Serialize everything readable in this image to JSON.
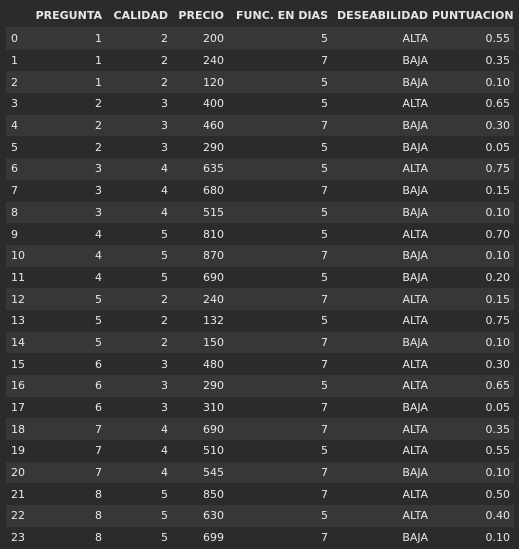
{
  "columns": {
    "index": "",
    "pregunta": "PREGUNTA",
    "calidad": "CALIDAD",
    "precio": "PRECIO",
    "func": "FUNC. EN DIAS",
    "deseabilidad": "DESEABILIDAD",
    "puntuacion": "PUNTUACION"
  },
  "rows": [
    {
      "idx": "0",
      "pregunta": "1",
      "calidad": "2",
      "precio": "200",
      "func": "5",
      "deseabilidad": "ALTA",
      "puntuacion": "0.55"
    },
    {
      "idx": "1",
      "pregunta": "1",
      "calidad": "2",
      "precio": "240",
      "func": "7",
      "deseabilidad": "BAJA",
      "puntuacion": "0.35"
    },
    {
      "idx": "2",
      "pregunta": "1",
      "calidad": "2",
      "precio": "120",
      "func": "5",
      "deseabilidad": "BAJA",
      "puntuacion": "0.10"
    },
    {
      "idx": "3",
      "pregunta": "2",
      "calidad": "3",
      "precio": "400",
      "func": "5",
      "deseabilidad": "ALTA",
      "puntuacion": "0.65"
    },
    {
      "idx": "4",
      "pregunta": "2",
      "calidad": "3",
      "precio": "460",
      "func": "7",
      "deseabilidad": "BAJA",
      "puntuacion": "0.30"
    },
    {
      "idx": "5",
      "pregunta": "2",
      "calidad": "3",
      "precio": "290",
      "func": "5",
      "deseabilidad": "BAJA",
      "puntuacion": "0.05"
    },
    {
      "idx": "6",
      "pregunta": "3",
      "calidad": "4",
      "precio": "635",
      "func": "5",
      "deseabilidad": "ALTA",
      "puntuacion": "0.75"
    },
    {
      "idx": "7",
      "pregunta": "3",
      "calidad": "4",
      "precio": "680",
      "func": "7",
      "deseabilidad": "BAJA",
      "puntuacion": "0.15"
    },
    {
      "idx": "8",
      "pregunta": "3",
      "calidad": "4",
      "precio": "515",
      "func": "5",
      "deseabilidad": "BAJA",
      "puntuacion": "0.10"
    },
    {
      "idx": "9",
      "pregunta": "4",
      "calidad": "5",
      "precio": "810",
      "func": "5",
      "deseabilidad": "ALTA",
      "puntuacion": "0.70"
    },
    {
      "idx": "10",
      "pregunta": "4",
      "calidad": "5",
      "precio": "870",
      "func": "7",
      "deseabilidad": "BAJA",
      "puntuacion": "0.10"
    },
    {
      "idx": "11",
      "pregunta": "4",
      "calidad": "5",
      "precio": "690",
      "func": "5",
      "deseabilidad": "BAJA",
      "puntuacion": "0.20"
    },
    {
      "idx": "12",
      "pregunta": "5",
      "calidad": "2",
      "precio": "240",
      "func": "7",
      "deseabilidad": "ALTA",
      "puntuacion": "0.15"
    },
    {
      "idx": "13",
      "pregunta": "5",
      "calidad": "2",
      "precio": "132",
      "func": "5",
      "deseabilidad": "ALTA",
      "puntuacion": "0.75"
    },
    {
      "idx": "14",
      "pregunta": "5",
      "calidad": "2",
      "precio": "150",
      "func": "7",
      "deseabilidad": "BAJA",
      "puntuacion": "0.10"
    },
    {
      "idx": "15",
      "pregunta": "6",
      "calidad": "3",
      "precio": "480",
      "func": "7",
      "deseabilidad": "ALTA",
      "puntuacion": "0.30"
    },
    {
      "idx": "16",
      "pregunta": "6",
      "calidad": "3",
      "precio": "290",
      "func": "5",
      "deseabilidad": "ALTA",
      "puntuacion": "0.65"
    },
    {
      "idx": "17",
      "pregunta": "6",
      "calidad": "3",
      "precio": "310",
      "func": "7",
      "deseabilidad": "BAJA",
      "puntuacion": "0.05"
    },
    {
      "idx": "18",
      "pregunta": "7",
      "calidad": "4",
      "precio": "690",
      "func": "7",
      "deseabilidad": "ALTA",
      "puntuacion": "0.35"
    },
    {
      "idx": "19",
      "pregunta": "7",
      "calidad": "4",
      "precio": "510",
      "func": "5",
      "deseabilidad": "ALTA",
      "puntuacion": "0.55"
    },
    {
      "idx": "20",
      "pregunta": "7",
      "calidad": "4",
      "precio": "545",
      "func": "7",
      "deseabilidad": "BAJA",
      "puntuacion": "0.10"
    },
    {
      "idx": "21",
      "pregunta": "8",
      "calidad": "5",
      "precio": "850",
      "func": "7",
      "deseabilidad": "ALTA",
      "puntuacion": "0.50"
    },
    {
      "idx": "22",
      "pregunta": "8",
      "calidad": "5",
      "precio": "630",
      "func": "5",
      "deseabilidad": "ALTA",
      "puntuacion": "0.40"
    },
    {
      "idx": "23",
      "pregunta": "8",
      "calidad": "5",
      "precio": "699",
      "func": "7",
      "deseabilidad": "BAJA",
      "puntuacion": "0.10"
    }
  ]
}
